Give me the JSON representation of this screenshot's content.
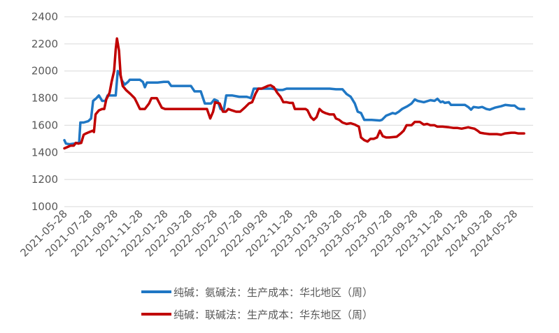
{
  "chart_data": {
    "type": "line",
    "title": "",
    "xlabel": "",
    "ylabel": "",
    "ylim": [
      1000,
      2400
    ],
    "yticks": [
      1000,
      1200,
      1400,
      1600,
      1800,
      2000,
      2200,
      2400
    ],
    "xlim": [
      "2021-05-28",
      "2024-07-12"
    ],
    "xtick_labels": [
      "2021-05-28",
      "2021-07-28",
      "2021-09-28",
      "2021-11-28",
      "2022-01-28",
      "2022-03-28",
      "2022-05-28",
      "2022-07-28",
      "2022-09-28",
      "2022-11-28",
      "2023-01-28",
      "2023-03-28",
      "2023-05-28",
      "2023-07-28",
      "2023-09-28",
      "2023-11-28",
      "2024-01-28",
      "2024-03-28",
      "2024-05-28"
    ],
    "grid": "horizontal",
    "legend_position": "bottom",
    "series": [
      {
        "name": "纯碱：氨碱法：生产成本：华北地区（周）",
        "color": "#1f77c4",
        "points": [
          [
            "2021-05-28",
            1490
          ],
          [
            "2021-06-01",
            1465
          ],
          [
            "2021-06-10",
            1460
          ],
          [
            "2021-06-20",
            1465
          ],
          [
            "2021-06-28",
            1470
          ],
          [
            "2021-07-03",
            1470
          ],
          [
            "2021-07-06",
            1620
          ],
          [
            "2021-07-14",
            1620
          ],
          [
            "2021-07-25",
            1630
          ],
          [
            "2021-08-01",
            1650
          ],
          [
            "2021-08-06",
            1780
          ],
          [
            "2021-08-14",
            1800
          ],
          [
            "2021-08-20",
            1820
          ],
          [
            "2021-08-28",
            1780
          ],
          [
            "2021-09-05",
            1780
          ],
          [
            "2021-09-10",
            1820
          ],
          [
            "2021-09-30",
            1820
          ],
          [
            "2021-10-05",
            2000
          ],
          [
            "2021-10-10",
            1980
          ],
          [
            "2021-10-15",
            1930
          ],
          [
            "2021-10-22",
            1900
          ],
          [
            "2021-10-30",
            1920
          ],
          [
            "2021-11-03",
            1935
          ],
          [
            "2021-11-28",
            1935
          ],
          [
            "2021-12-05",
            1920
          ],
          [
            "2021-12-10",
            1880
          ],
          [
            "2021-12-15",
            1915
          ],
          [
            "2022-01-10",
            1915
          ],
          [
            "2022-01-25",
            1920
          ],
          [
            "2022-02-05",
            1920
          ],
          [
            "2022-02-12",
            1890
          ],
          [
            "2022-03-20",
            1890
          ],
          [
            "2022-04-01",
            1890
          ],
          [
            "2022-04-10",
            1850
          ],
          [
            "2022-04-25",
            1850
          ],
          [
            "2022-05-05",
            1760
          ],
          [
            "2022-05-20",
            1760
          ],
          [
            "2022-05-28",
            1790
          ],
          [
            "2022-06-05",
            1780
          ],
          [
            "2022-06-12",
            1720
          ],
          [
            "2022-06-20",
            1710
          ],
          [
            "2022-06-26",
            1820
          ],
          [
            "2022-07-10",
            1820
          ],
          [
            "2022-07-28",
            1810
          ],
          [
            "2022-08-15",
            1810
          ],
          [
            "2022-08-25",
            1800
          ],
          [
            "2022-09-01",
            1870
          ],
          [
            "2022-09-28",
            1870
          ],
          [
            "2022-10-15",
            1870
          ],
          [
            "2022-11-01",
            1860
          ],
          [
            "2022-11-10",
            1860
          ],
          [
            "2022-11-20",
            1870
          ],
          [
            "2023-03-05",
            1870
          ],
          [
            "2023-03-20",
            1865
          ],
          [
            "2023-04-05",
            1865
          ],
          [
            "2023-04-15",
            1830
          ],
          [
            "2023-04-25",
            1810
          ],
          [
            "2023-05-05",
            1760
          ],
          [
            "2023-05-12",
            1700
          ],
          [
            "2023-05-20",
            1690
          ],
          [
            "2023-05-28",
            1640
          ],
          [
            "2023-06-15",
            1640
          ],
          [
            "2023-07-05",
            1635
          ],
          [
            "2023-07-10",
            1640
          ],
          [
            "2023-07-20",
            1670
          ],
          [
            "2023-07-28",
            1680
          ],
          [
            "2023-08-05",
            1690
          ],
          [
            "2023-08-12",
            1685
          ],
          [
            "2023-08-20",
            1700
          ],
          [
            "2023-08-28",
            1720
          ],
          [
            "2023-09-10",
            1740
          ],
          [
            "2023-09-20",
            1760
          ],
          [
            "2023-09-28",
            1790
          ],
          [
            "2023-10-05",
            1780
          ],
          [
            "2023-10-20",
            1770
          ],
          [
            "2023-11-05",
            1785
          ],
          [
            "2023-11-15",
            1780
          ],
          [
            "2023-11-22",
            1795
          ],
          [
            "2023-11-30",
            1770
          ],
          [
            "2023-12-05",
            1775
          ],
          [
            "2023-12-10",
            1765
          ],
          [
            "2023-12-20",
            1770
          ],
          [
            "2023-12-25",
            1750
          ],
          [
            "2024-01-10",
            1750
          ],
          [
            "2024-01-28",
            1750
          ],
          [
            "2024-02-05",
            1735
          ],
          [
            "2024-02-12",
            1715
          ],
          [
            "2024-02-18",
            1735
          ],
          [
            "2024-03-01",
            1730
          ],
          [
            "2024-03-10",
            1735
          ],
          [
            "2024-03-20",
            1720
          ],
          [
            "2024-03-28",
            1715
          ],
          [
            "2024-04-10",
            1730
          ],
          [
            "2024-04-25",
            1740
          ],
          [
            "2024-05-05",
            1750
          ],
          [
            "2024-05-20",
            1745
          ],
          [
            "2024-05-28",
            1745
          ],
          [
            "2024-06-05",
            1725
          ],
          [
            "2024-06-10",
            1720
          ],
          [
            "2024-06-20",
            1720
          ]
        ]
      },
      {
        "name": "纯碱：联碱法：生产成本：华东地区（周）",
        "color": "#c00000",
        "points": [
          [
            "2021-05-28",
            1430
          ],
          [
            "2021-06-05",
            1440
          ],
          [
            "2021-06-12",
            1450
          ],
          [
            "2021-06-20",
            1450
          ],
          [
            "2021-06-25",
            1470
          ],
          [
            "2021-07-01",
            1465
          ],
          [
            "2021-07-08",
            1470
          ],
          [
            "2021-07-14",
            1530
          ],
          [
            "2021-07-20",
            1540
          ],
          [
            "2021-07-28",
            1550
          ],
          [
            "2021-08-05",
            1560
          ],
          [
            "2021-08-08",
            1550
          ],
          [
            "2021-08-12",
            1680
          ],
          [
            "2021-08-20",
            1710
          ],
          [
            "2021-08-28",
            1720
          ],
          [
            "2021-09-02",
            1720
          ],
          [
            "2021-09-07",
            1790
          ],
          [
            "2021-09-15",
            1840
          ],
          [
            "2021-09-20",
            1920
          ],
          [
            "2021-09-26",
            2000
          ],
          [
            "2021-09-30",
            2160
          ],
          [
            "2021-10-03",
            2240
          ],
          [
            "2021-10-08",
            2150
          ],
          [
            "2021-10-12",
            1970
          ],
          [
            "2021-10-17",
            1890
          ],
          [
            "2021-10-25",
            1860
          ],
          [
            "2021-11-05",
            1830
          ],
          [
            "2021-11-15",
            1800
          ],
          [
            "2021-11-20",
            1770
          ],
          [
            "2021-11-28",
            1720
          ],
          [
            "2021-12-10",
            1720
          ],
          [
            "2021-12-20",
            1760
          ],
          [
            "2021-12-26",
            1800
          ],
          [
            "2022-01-08",
            1800
          ],
          [
            "2022-01-20",
            1730
          ],
          [
            "2022-01-28",
            1720
          ],
          [
            "2022-02-15",
            1720
          ],
          [
            "2022-03-28",
            1720
          ],
          [
            "2022-04-30",
            1720
          ],
          [
            "2022-05-10",
            1720
          ],
          [
            "2022-05-18",
            1650
          ],
          [
            "2022-05-25",
            1700
          ],
          [
            "2022-05-30",
            1770
          ],
          [
            "2022-06-10",
            1760
          ],
          [
            "2022-06-18",
            1700
          ],
          [
            "2022-06-25",
            1700
          ],
          [
            "2022-07-01",
            1720
          ],
          [
            "2022-07-10",
            1710
          ],
          [
            "2022-07-20",
            1700
          ],
          [
            "2022-07-30",
            1700
          ],
          [
            "2022-08-10",
            1730
          ],
          [
            "2022-08-20",
            1760
          ],
          [
            "2022-08-28",
            1770
          ],
          [
            "2022-09-05",
            1830
          ],
          [
            "2022-09-12",
            1870
          ],
          [
            "2022-09-20",
            1870
          ],
          [
            "2022-09-28",
            1880
          ],
          [
            "2022-10-05",
            1890
          ],
          [
            "2022-10-12",
            1895
          ],
          [
            "2022-10-20",
            1880
          ],
          [
            "2022-10-28",
            1840
          ],
          [
            "2022-11-05",
            1810
          ],
          [
            "2022-11-12",
            1770
          ],
          [
            "2022-11-20",
            1770
          ],
          [
            "2022-11-28",
            1765
          ],
          [
            "2022-12-05",
            1765
          ],
          [
            "2022-12-10",
            1720
          ],
          [
            "2023-01-05",
            1720
          ],
          [
            "2023-01-10",
            1710
          ],
          [
            "2023-01-18",
            1660
          ],
          [
            "2023-01-25",
            1640
          ],
          [
            "2023-02-01",
            1660
          ],
          [
            "2023-02-08",
            1720
          ],
          [
            "2023-02-15",
            1700
          ],
          [
            "2023-02-22",
            1690
          ],
          [
            "2023-03-05",
            1680
          ],
          [
            "2023-03-15",
            1680
          ],
          [
            "2023-03-20",
            1650
          ],
          [
            "2023-03-28",
            1640
          ],
          [
            "2023-04-05",
            1620
          ],
          [
            "2023-04-15",
            1610
          ],
          [
            "2023-04-25",
            1615
          ],
          [
            "2023-05-05",
            1605
          ],
          [
            "2023-05-15",
            1590
          ],
          [
            "2023-05-20",
            1510
          ],
          [
            "2023-05-28",
            1490
          ],
          [
            "2023-06-05",
            1480
          ],
          [
            "2023-06-12",
            1500
          ],
          [
            "2023-06-20",
            1500
          ],
          [
            "2023-06-28",
            1510
          ],
          [
            "2023-07-05",
            1560
          ],
          [
            "2023-07-12",
            1520
          ],
          [
            "2023-07-20",
            1510
          ],
          [
            "2023-07-28",
            1510
          ],
          [
            "2023-08-15",
            1515
          ],
          [
            "2023-08-25",
            1540
          ],
          [
            "2023-09-01",
            1560
          ],
          [
            "2023-09-08",
            1600
          ],
          [
            "2023-09-20",
            1600
          ],
          [
            "2023-09-28",
            1625
          ],
          [
            "2023-10-10",
            1625
          ],
          [
            "2023-10-20",
            1605
          ],
          [
            "2023-10-28",
            1610
          ],
          [
            "2023-11-05",
            1600
          ],
          [
            "2023-11-15",
            1600
          ],
          [
            "2023-11-22",
            1590
          ],
          [
            "2023-12-05",
            1590
          ],
          [
            "2023-12-20",
            1585
          ],
          [
            "2024-01-01",
            1580
          ],
          [
            "2024-01-10",
            1580
          ],
          [
            "2024-01-20",
            1575
          ],
          [
            "2024-01-28",
            1580
          ],
          [
            "2024-02-05",
            1585
          ],
          [
            "2024-02-12",
            1580
          ],
          [
            "2024-02-20",
            1575
          ],
          [
            "2024-02-28",
            1560
          ],
          [
            "2024-03-05",
            1545
          ],
          [
            "2024-03-15",
            1540
          ],
          [
            "2024-03-28",
            1535
          ],
          [
            "2024-04-15",
            1535
          ],
          [
            "2024-04-25",
            1530
          ],
          [
            "2024-05-05",
            1540
          ],
          [
            "2024-05-20",
            1545
          ],
          [
            "2024-05-28",
            1545
          ],
          [
            "2024-06-05",
            1540
          ],
          [
            "2024-06-20",
            1540
          ]
        ]
      }
    ]
  }
}
